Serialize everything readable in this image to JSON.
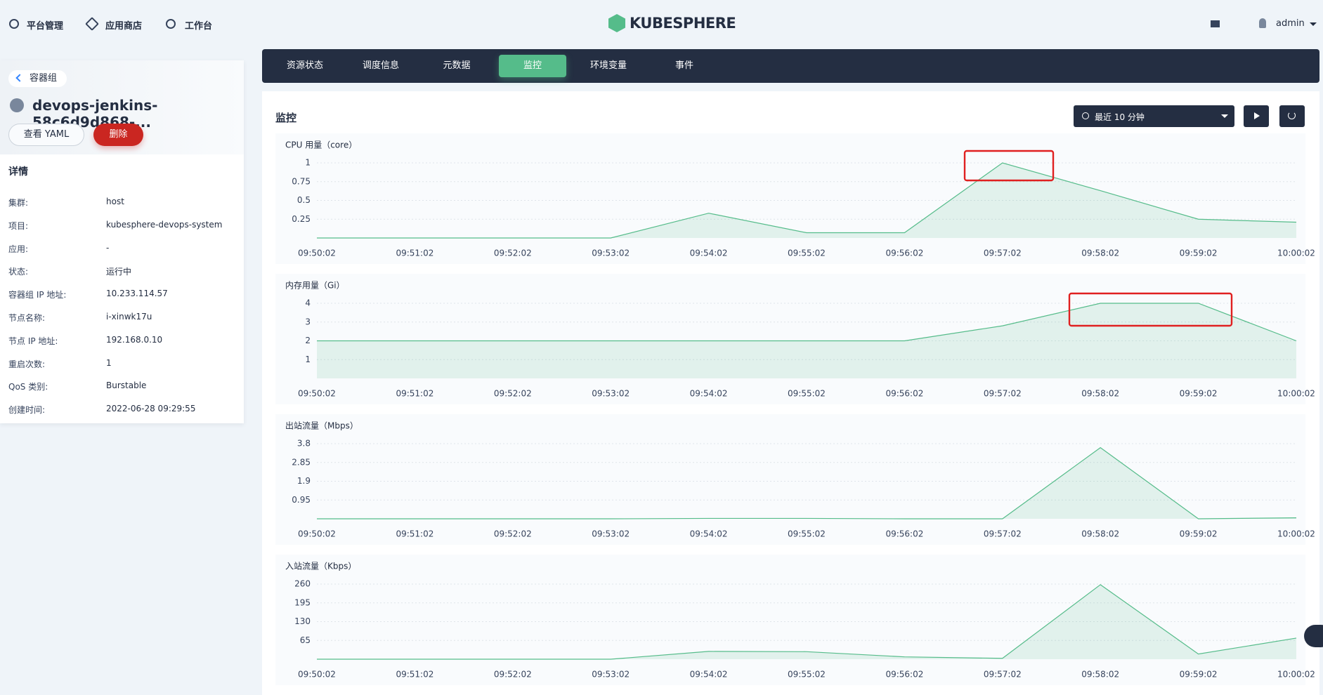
{
  "nav": {
    "items": [
      "平台管理",
      "应用商店",
      "工作台"
    ],
    "logo": "KUBESPHERE",
    "user": "admin"
  },
  "sidebar": {
    "back": "容器组",
    "name": "devops-jenkins-58c6d9d868-...",
    "buttons": [
      "查看 YAML",
      "删除"
    ],
    "details_title": "详情",
    "details": [
      [
        "集群:",
        "host"
      ],
      [
        "项目:",
        "kubesphere-devops-system"
      ],
      [
        "应用:",
        "-"
      ],
      [
        "状态:",
        "运行中"
      ],
      [
        "容器组 IP 地址:",
        "10.233.114.57"
      ],
      [
        "节点名称:",
        "i-xinwk17u"
      ],
      [
        "节点 IP 地址:",
        "192.168.0.10"
      ],
      [
        "重启次数:",
        "1"
      ],
      [
        "QoS 类别:",
        "Burstable"
      ],
      [
        "创建时间:",
        "2022-06-28 09:29:55"
      ]
    ]
  },
  "tabs": {
    "items": [
      "资源状态",
      "调度信息",
      "元数据",
      "监控",
      "环境变量",
      "事件"
    ],
    "active": 3
  },
  "monitoring": {
    "title": "监控",
    "time_range": "最近 10 分钟",
    "charts": [
      {
        "type": "line",
        "title": "CPU 用量（core）",
        "color": "#55bc8a",
        "x": [
          "09:50:02",
          "09:51:02",
          "09:52:02",
          "09:53:02",
          "09:54:02",
          "09:55:02",
          "09:56:02",
          "09:57:02",
          "09:58:02",
          "09:59:02",
          "10:00:02"
        ],
        "values": [
          0,
          0,
          0,
          0,
          0.33,
          0.07,
          0.07,
          1,
          0.63,
          0.25,
          0.21
        ],
        "ylim": [
          0,
          1
        ],
        "yticks": [
          0.25,
          0.5,
          0.75,
          1
        ]
      },
      {
        "type": "line",
        "title": "内存用量（Gi）",
        "color": "#55bc8a",
        "x": [
          "09:50:02",
          "09:51:02",
          "09:52:02",
          "09:53:02",
          "09:54:02",
          "09:55:02",
          "09:56:02",
          "09:57:02",
          "09:58:02",
          "09:59:02",
          "10:00:02"
        ],
        "values": [
          2,
          2,
          2,
          2,
          2,
          2,
          2,
          2.8,
          4,
          4,
          2
        ],
        "ylim": [
          0,
          4
        ],
        "yticks": [
          1,
          2,
          3,
          4
        ]
      },
      {
        "type": "line",
        "title": "出站流量（Mbps）",
        "color": "#55bc8a",
        "x": [
          "09:50:02",
          "09:51:02",
          "09:52:02",
          "09:53:02",
          "09:54:02",
          "09:55:02",
          "09:56:02",
          "09:57:02",
          "09:58:02",
          "09:59:02",
          "10:00:02"
        ],
        "values": [
          0,
          0,
          0,
          0,
          0.02,
          0.02,
          0,
          0,
          3.6,
          0,
          0.05
        ],
        "ylim": [
          0,
          3.8
        ],
        "yticks": [
          0.95,
          1.9,
          2.85,
          3.8
        ]
      },
      {
        "type": "line",
        "title": "入站流量（Kbps）",
        "color": "#55bc8a",
        "x": [
          "09:50:02",
          "09:51:02",
          "09:52:02",
          "09:53:02",
          "09:54:02",
          "09:55:02",
          "09:56:02",
          "09:57:02",
          "09:58:02",
          "09:59:02",
          "10:00:02"
        ],
        "values": [
          0,
          0,
          0,
          0,
          27,
          26,
          8,
          3,
          258,
          18,
          73
        ],
        "ylim": [
          0,
          260
        ],
        "yticks": [
          65,
          130,
          195,
          260
        ]
      }
    ]
  }
}
